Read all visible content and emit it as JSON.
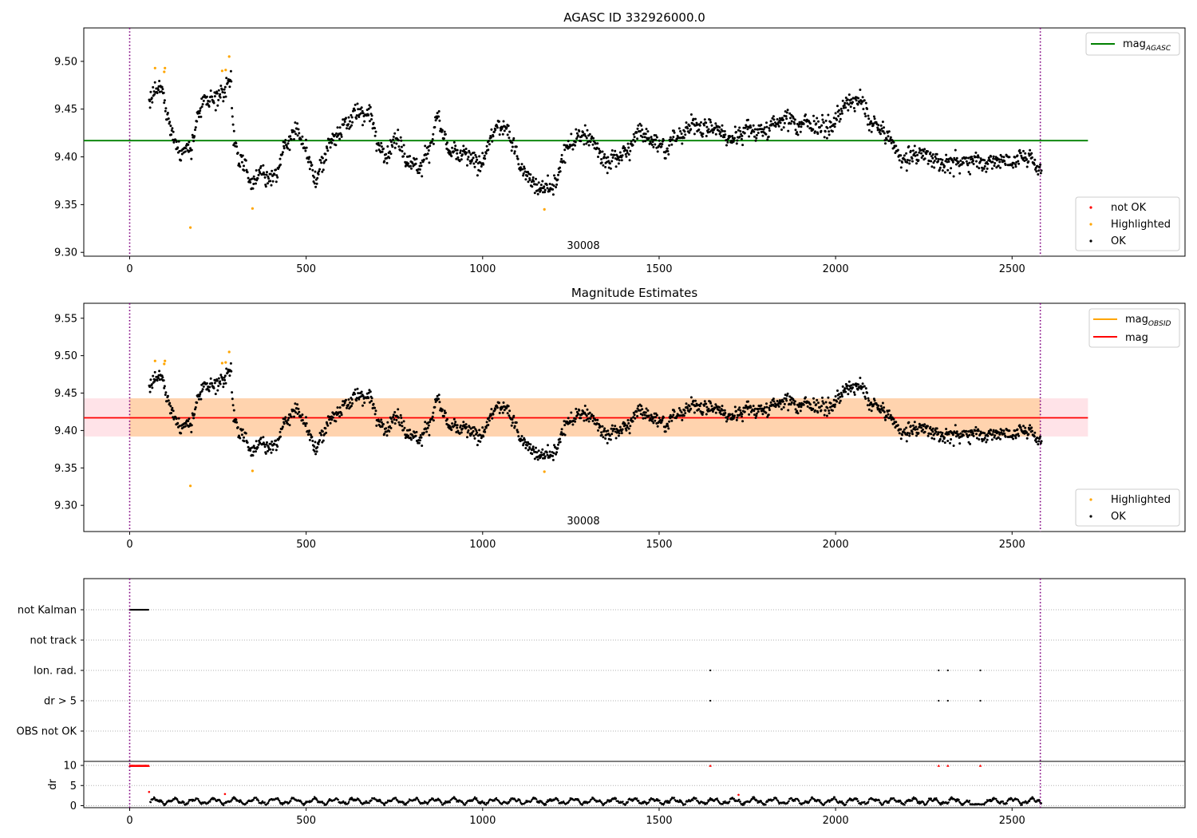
{
  "chart_data": [
    {
      "type": "scatter",
      "title": "AGASC ID 332926000.0",
      "obsid_label": "30008",
      "xlim": [
        -130,
        2990
      ],
      "ylim": [
        9.296,
        9.535
      ],
      "x_ticks": [
        0,
        500,
        1000,
        1500,
        2000,
        2500
      ],
      "y_ticks": [
        9.3,
        9.35,
        9.4,
        9.45,
        9.5
      ],
      "x_tick_labels": [
        "0",
        "500",
        "1000",
        "1500",
        "2000",
        "2500"
      ],
      "y_tick_labels": [
        "9.30",
        "9.35",
        "9.40",
        "9.45",
        "9.50"
      ],
      "vlines": [
        0,
        2580
      ],
      "hline": {
        "y": 9.417,
        "x_end": 2715,
        "color": "#008000"
      },
      "legend_top": [
        {
          "label": "mag",
          "sub": "AGASC",
          "color": "#008000"
        }
      ],
      "legend_bottom": [
        {
          "label": "not OK",
          "color": "#ff0000"
        },
        {
          "label": "Highlighted",
          "color": "#ffa500"
        },
        {
          "label": "OK",
          "color": "#000000"
        }
      ],
      "n_points": 1650,
      "highlighted": [
        {
          "x": 72,
          "y": 9.493
        },
        {
          "x": 98,
          "y": 9.489
        },
        {
          "x": 100,
          "y": 9.493
        },
        {
          "x": 172,
          "y": 9.326
        },
        {
          "x": 262,
          "y": 9.49
        },
        {
          "x": 272,
          "y": 9.491
        },
        {
          "x": 282,
          "y": 9.505
        },
        {
          "x": 348,
          "y": 9.346
        },
        {
          "x": 1175,
          "y": 9.345
        }
      ],
      "anchors": [
        {
          "x": 55,
          "y": 9.46
        },
        {
          "x": 80,
          "y": 9.47
        },
        {
          "x": 100,
          "y": 9.46
        },
        {
          "x": 112,
          "y": 9.44
        },
        {
          "x": 125,
          "y": 9.42
        },
        {
          "x": 150,
          "y": 9.41
        },
        {
          "x": 175,
          "y": 9.41
        },
        {
          "x": 195,
          "y": 9.44
        },
        {
          "x": 215,
          "y": 9.46
        },
        {
          "x": 240,
          "y": 9.46
        },
        {
          "x": 270,
          "y": 9.47
        },
        {
          "x": 287,
          "y": 9.48
        },
        {
          "x": 295,
          "y": 9.42
        },
        {
          "x": 310,
          "y": 9.4
        },
        {
          "x": 330,
          "y": 9.39
        },
        {
          "x": 350,
          "y": 9.365
        },
        {
          "x": 370,
          "y": 9.39
        },
        {
          "x": 390,
          "y": 9.375
        },
        {
          "x": 415,
          "y": 9.38
        },
        {
          "x": 440,
          "y": 9.41
        },
        {
          "x": 470,
          "y": 9.425
        },
        {
          "x": 500,
          "y": 9.415
        },
        {
          "x": 520,
          "y": 9.38
        },
        {
          "x": 545,
          "y": 9.39
        },
        {
          "x": 570,
          "y": 9.415
        },
        {
          "x": 600,
          "y": 9.43
        },
        {
          "x": 640,
          "y": 9.445
        },
        {
          "x": 680,
          "y": 9.45
        },
        {
          "x": 700,
          "y": 9.41
        },
        {
          "x": 730,
          "y": 9.41
        },
        {
          "x": 760,
          "y": 9.42
        },
        {
          "x": 790,
          "y": 9.4
        },
        {
          "x": 820,
          "y": 9.39
        },
        {
          "x": 850,
          "y": 9.41
        },
        {
          "x": 870,
          "y": 9.44
        },
        {
          "x": 890,
          "y": 9.42
        },
        {
          "x": 910,
          "y": 9.4
        },
        {
          "x": 950,
          "y": 9.4
        },
        {
          "x": 990,
          "y": 9.39
        },
        {
          "x": 1030,
          "y": 9.425
        },
        {
          "x": 1070,
          "y": 9.43
        },
        {
          "x": 1090,
          "y": 9.41
        },
        {
          "x": 1110,
          "y": 9.39
        },
        {
          "x": 1150,
          "y": 9.37
        },
        {
          "x": 1200,
          "y": 9.365
        },
        {
          "x": 1230,
          "y": 9.4
        },
        {
          "x": 1270,
          "y": 9.42
        },
        {
          "x": 1300,
          "y": 9.425
        },
        {
          "x": 1340,
          "y": 9.395
        },
        {
          "x": 1380,
          "y": 9.4
        },
        {
          "x": 1420,
          "y": 9.41
        },
        {
          "x": 1450,
          "y": 9.43
        },
        {
          "x": 1480,
          "y": 9.42
        },
        {
          "x": 1520,
          "y": 9.41
        },
        {
          "x": 1560,
          "y": 9.42
        },
        {
          "x": 1600,
          "y": 9.435
        },
        {
          "x": 1650,
          "y": 9.43
        },
        {
          "x": 1700,
          "y": 9.42
        },
        {
          "x": 1760,
          "y": 9.43
        },
        {
          "x": 1800,
          "y": 9.425
        },
        {
          "x": 1850,
          "y": 9.44
        },
        {
          "x": 1900,
          "y": 9.435
        },
        {
          "x": 1950,
          "y": 9.435
        },
        {
          "x": 1990,
          "y": 9.43
        },
        {
          "x": 2020,
          "y": 9.455
        },
        {
          "x": 2060,
          "y": 9.46
        },
        {
          "x": 2100,
          "y": 9.44
        },
        {
          "x": 2150,
          "y": 9.42
        },
        {
          "x": 2180,
          "y": 9.4
        },
        {
          "x": 2250,
          "y": 9.4
        },
        {
          "x": 2300,
          "y": 9.395
        },
        {
          "x": 2350,
          "y": 9.39
        },
        {
          "x": 2400,
          "y": 9.4
        },
        {
          "x": 2450,
          "y": 9.395
        },
        {
          "x": 2500,
          "y": 9.395
        },
        {
          "x": 2550,
          "y": 9.4
        },
        {
          "x": 2583,
          "y": 9.38
        }
      ]
    },
    {
      "type": "scatter",
      "title": "Magnitude Estimates",
      "obsid_label": "30008",
      "xlim": [
        -130,
        2990
      ],
      "ylim": [
        9.265,
        9.57
      ],
      "x_ticks": [
        0,
        500,
        1000,
        1500,
        2000,
        2500
      ],
      "y_ticks": [
        9.3,
        9.35,
        9.4,
        9.45,
        9.5,
        9.55
      ],
      "x_tick_labels": [
        "0",
        "500",
        "1000",
        "1500",
        "2000",
        "2500"
      ],
      "y_tick_labels": [
        "9.30",
        "9.35",
        "9.40",
        "9.45",
        "9.50",
        "9.55"
      ],
      "vlines": [
        0,
        2580
      ],
      "mag_line": {
        "y": 9.417,
        "x_end": 2715,
        "color": "#ff0000"
      },
      "obsid_band": {
        "y0": 9.392,
        "y1": 9.443,
        "x0": 0,
        "x1": 2580,
        "color": "#ffa500"
      },
      "mag_band": {
        "y0": 9.392,
        "y1": 9.443,
        "x0": -130,
        "x1": 2715,
        "color": "#ffc0cb"
      },
      "legend_top": [
        {
          "label": "mag",
          "sub": "OBSID",
          "color": "#ffa500"
        },
        {
          "label": "mag",
          "sub": "",
          "color": "#ff0000"
        }
      ],
      "legend_bottom": [
        {
          "label": "Highlighted",
          "color": "#ffa500"
        },
        {
          "label": "OK",
          "color": "#000000"
        }
      ]
    },
    {
      "type": "scatter",
      "xlim": [
        -130,
        2990
      ],
      "x_ticks": [
        0,
        500,
        1000,
        1500,
        2000,
        2500
      ],
      "x_tick_labels": [
        "0",
        "500",
        "1000",
        "1500",
        "2000",
        "2500"
      ],
      "flag_labels": [
        "not Kalman",
        "not track",
        "Ion. rad.",
        "dr > 5",
        "OBS not OK"
      ],
      "flags": {
        "not Kalman": {
          "x_range": [
            0,
            55
          ]
        },
        "not track": {
          "x_range": null
        },
        "Ion. rad.": {
          "x": [
            1645,
            2292,
            2318,
            2410
          ]
        },
        "dr > 5": {
          "x": [
            1645,
            2292,
            2318,
            2410
          ]
        },
        "OBS not OK": {
          "x_range": null
        }
      },
      "dr_ylabel": "dr",
      "dr_ylim": [
        -0.5,
        11
      ],
      "dr_ticks": [
        0,
        5,
        10
      ],
      "dr_tick_labels": [
        "0",
        "5",
        "10"
      ],
      "dr_clipped_red": [
        1645,
        2292,
        2318,
        2410
      ],
      "dr_red_extra": [
        {
          "x": 55,
          "y": 3.4
        },
        {
          "x": 270,
          "y": 2.9
        },
        {
          "x": 1725,
          "y": 2.7
        }
      ]
    }
  ]
}
